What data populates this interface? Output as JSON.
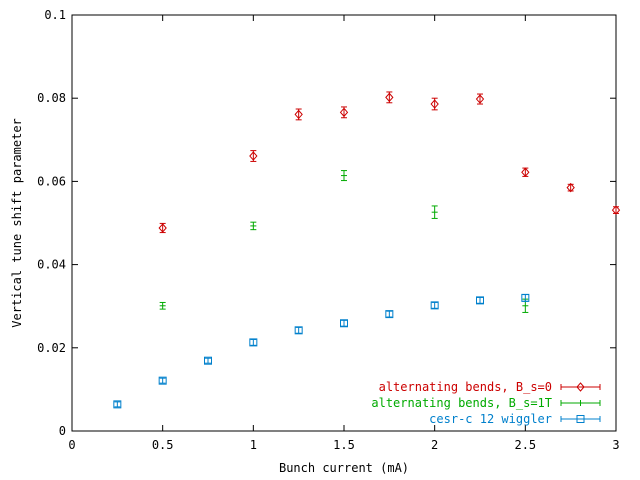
{
  "chart_data": {
    "type": "scatter",
    "title": "",
    "xlabel": "Bunch current (mA)",
    "ylabel": "Vertical tune shift parameter",
    "xlim": [
      0,
      3
    ],
    "ylim": [
      0,
      0.1
    ],
    "x_ticks": [
      "0",
      "0.5",
      "1",
      "1.5",
      "2",
      "2.5",
      "3"
    ],
    "y_ticks": [
      "0",
      "0.02",
      "0.04",
      "0.06",
      "0.08",
      "0.1"
    ],
    "x_tick_values": [
      0,
      0.5,
      1,
      1.5,
      2,
      2.5,
      3
    ],
    "y_tick_values": [
      0,
      0.02,
      0.04,
      0.06,
      0.08,
      0.1
    ],
    "grid": false,
    "legend_position": "bottom-right",
    "series": [
      {
        "name": "alternating bends, B_s=0",
        "color": "#cc0000",
        "marker": "diamond",
        "points": [
          {
            "x": 0.5,
            "y": 0.0488,
            "err": 0.0011
          },
          {
            "x": 1.0,
            "y": 0.0661,
            "err": 0.0013
          },
          {
            "x": 1.25,
            "y": 0.0761,
            "err": 0.0013
          },
          {
            "x": 1.5,
            "y": 0.0766,
            "err": 0.0013
          },
          {
            "x": 1.75,
            "y": 0.0802,
            "err": 0.0013
          },
          {
            "x": 2.0,
            "y": 0.0786,
            "err": 0.0014
          },
          {
            "x": 2.25,
            "y": 0.0798,
            "err": 0.0012
          },
          {
            "x": 2.5,
            "y": 0.0622,
            "err": 0.001
          },
          {
            "x": 2.75,
            "y": 0.0585,
            "err": 0.0008
          },
          {
            "x": 3.0,
            "y": 0.0531,
            "err": 0.0008
          }
        ]
      },
      {
        "name": "alternating bends, B_s=1T",
        "color": "#00aa00",
        "marker": "plus",
        "points": [
          {
            "x": 0.5,
            "y": 0.0301,
            "err": 0.0008
          },
          {
            "x": 1.0,
            "y": 0.0493,
            "err": 0.0009
          },
          {
            "x": 1.5,
            "y": 0.0614,
            "err": 0.0012
          },
          {
            "x": 2.0,
            "y": 0.0526,
            "err": 0.0015
          },
          {
            "x": 2.5,
            "y": 0.0301,
            "err": 0.0016
          }
        ]
      },
      {
        "name": "cesr-c 12 wiggler",
        "color": "#0080cc",
        "marker": "square",
        "points": [
          {
            "x": 0.25,
            "y": 0.0064,
            "err": 0.0006
          },
          {
            "x": 0.5,
            "y": 0.0121,
            "err": 0.0006
          },
          {
            "x": 0.75,
            "y": 0.0169,
            "err": 0.0006
          },
          {
            "x": 1.0,
            "y": 0.0213,
            "err": 0.0007
          },
          {
            "x": 1.25,
            "y": 0.0242,
            "err": 0.0007
          },
          {
            "x": 1.5,
            "y": 0.0259,
            "err": 0.0007
          },
          {
            "x": 1.75,
            "y": 0.0281,
            "err": 0.0007
          },
          {
            "x": 2.0,
            "y": 0.0302,
            "err": 0.0007
          },
          {
            "x": 2.25,
            "y": 0.0314,
            "err": 0.0007
          },
          {
            "x": 2.5,
            "y": 0.032,
            "err": 0.0008
          }
        ]
      }
    ]
  }
}
